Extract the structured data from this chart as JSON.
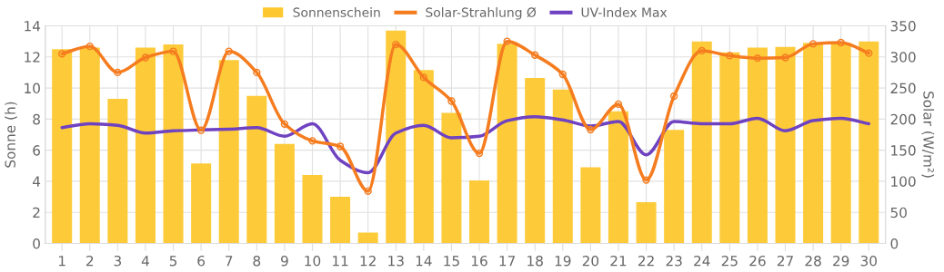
{
  "chart_data": {
    "type": "bar",
    "categories": [
      "1",
      "2",
      "3",
      "4",
      "5",
      "6",
      "7",
      "8",
      "9",
      "10",
      "11",
      "12",
      "13",
      "14",
      "15",
      "16",
      "17",
      "18",
      "19",
      "20",
      "21",
      "22",
      "23",
      "24",
      "25",
      "26",
      "27",
      "28",
      "29",
      "30"
    ],
    "series": [
      {
        "name": "Sonnenschein",
        "color": "#fdc82f",
        "values": [
          12.5,
          12.6,
          9.3,
          12.6,
          12.8,
          5.15,
          11.8,
          9.5,
          6.4,
          4.4,
          3.0,
          0.7,
          13.7,
          11.15,
          8.4,
          4.05,
          12.85,
          10.65,
          9.9,
          4.9,
          8.5,
          2.65,
          7.3,
          13.0,
          12.3,
          12.6,
          12.65,
          12.9,
          12.9,
          13.0
        ]
      },
      {
        "name": "Solar-Strahlung Ø",
        "type": "line",
        "axis": "y2",
        "color": "#f57c1f",
        "marker": "circle",
        "values": [
          305,
          317,
          275,
          299,
          309,
          182,
          309,
          275,
          192,
          165,
          156,
          84,
          320,
          267,
          229,
          145,
          325,
          303,
          272,
          183,
          224,
          102,
          237,
          310,
          302,
          298,
          299,
          321,
          323,
          306
        ]
      },
      {
        "name": "UV-Index Max",
        "type": "line",
        "color": "#6f42c1",
        "marker": "none",
        "values": [
          7.45,
          7.7,
          7.6,
          7.1,
          7.25,
          7.3,
          7.35,
          7.45,
          6.9,
          7.7,
          5.35,
          4.55,
          7.1,
          7.6,
          6.8,
          6.9,
          7.9,
          8.15,
          7.95,
          7.55,
          7.85,
          5.7,
          7.85,
          7.7,
          7.7,
          8.05,
          7.25,
          7.9,
          8.05,
          7.7
        ]
      }
    ],
    "ylabel": "Sonne (h)",
    "y2label": "Solar (W/m²)",
    "ylim": [
      0,
      14
    ],
    "yticks": [
      0,
      2,
      4,
      6,
      8,
      10,
      12,
      14
    ],
    "y2lim": [
      0,
      350
    ],
    "y2ticks": [
      0,
      50,
      100,
      150,
      200,
      250,
      300,
      350
    ],
    "grid": true,
    "legend": "top",
    "line_style": "solid"
  }
}
